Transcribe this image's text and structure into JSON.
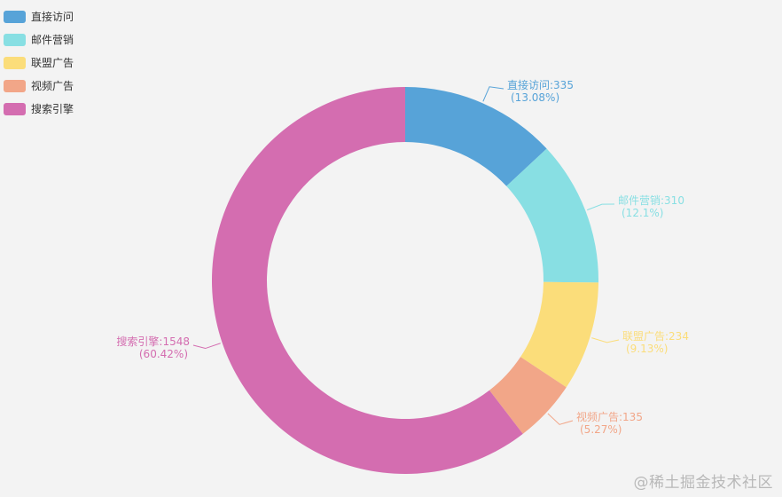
{
  "chart_data": {
    "type": "pie",
    "variant": "donut",
    "legend_position": "top-left",
    "slices": [
      {
        "name": "直接访问",
        "value": 335,
        "percent": "13.08%",
        "color": "#57a3d8"
      },
      {
        "name": "邮件营销",
        "value": 310,
        "percent": "12.1%",
        "color": "#88dfe3"
      },
      {
        "name": "联盟广告",
        "value": 234,
        "percent": "9.13%",
        "color": "#fbdd7a"
      },
      {
        "name": "视频广告",
        "value": 135,
        "percent": "5.27%",
        "color": "#f2a688"
      },
      {
        "name": "搜索引擎",
        "value": 1548,
        "percent": "60.42%",
        "color": "#d46db0"
      }
    ]
  },
  "watermark": "@稀土掘金技术社区"
}
